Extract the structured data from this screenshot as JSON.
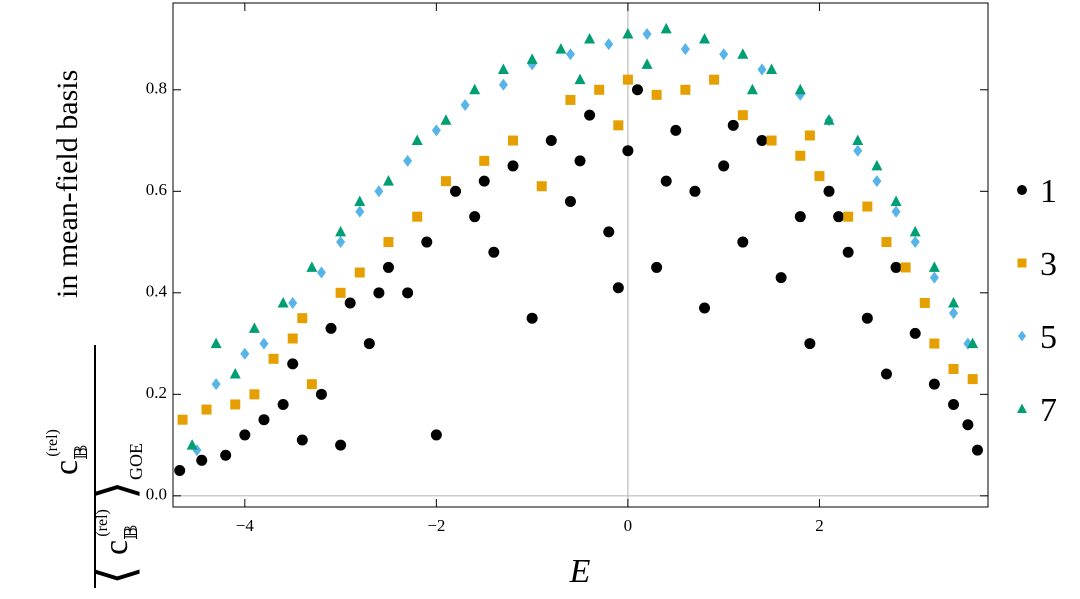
{
  "chart_data": {
    "type": "scatter",
    "xlabel": "E",
    "ylabel": {
      "symbol": "c",
      "sup": "(rel)",
      "sub": "𝔹",
      "average_sub": "GOE",
      "suffix": "in mean-field basis"
    },
    "xlim": [
      -4.75,
      3.76
    ],
    "ylim": [
      -0.022,
      0.971
    ],
    "xticks": [
      {
        "value": -4,
        "label": "−4"
      },
      {
        "value": -2,
        "label": "−2"
      },
      0,
      2
    ],
    "yticks": [
      {
        "value": 0,
        "label": "0.0"
      },
      0.2,
      0.4,
      0.6,
      0.8
    ],
    "zero_lines": {
      "x": 0,
      "y": 0
    },
    "legend": "right",
    "series": [
      {
        "name": "1",
        "color": "#000000",
        "marker": "circle",
        "x": [
          -4.68,
          -4.45,
          -4.2,
          -4.0,
          -3.8,
          -3.6,
          -3.4,
          -3.2,
          -3.0,
          -3.5,
          -3.1,
          -2.9,
          -2.7,
          -2.5,
          -2.3,
          -2.0,
          -2.1,
          -1.8,
          -1.6,
          -1.4,
          -1.2,
          -1.0,
          -0.8,
          -0.6,
          -0.4,
          -0.2,
          -0.1,
          0.0,
          0.1,
          0.3,
          0.5,
          0.7,
          0.8,
          1.0,
          1.2,
          1.4,
          1.6,
          1.8,
          1.9,
          2.1,
          2.3,
          2.5,
          2.7,
          2.8,
          3.0,
          3.2,
          3.4,
          3.55,
          3.65,
          -1.5,
          0.4,
          -0.5,
          1.1,
          2.2,
          -2.6
        ],
        "y": [
          0.05,
          0.07,
          0.08,
          0.12,
          0.15,
          0.18,
          0.11,
          0.2,
          0.1,
          0.26,
          0.33,
          0.38,
          0.3,
          0.45,
          0.4,
          0.12,
          0.5,
          0.6,
          0.55,
          0.48,
          0.65,
          0.35,
          0.7,
          0.58,
          0.75,
          0.52,
          0.41,
          0.68,
          0.8,
          0.45,
          0.72,
          0.6,
          0.37,
          0.65,
          0.5,
          0.7,
          0.43,
          0.55,
          0.3,
          0.6,
          0.48,
          0.35,
          0.24,
          0.45,
          0.32,
          0.22,
          0.18,
          0.14,
          0.09,
          0.62,
          0.62,
          0.66,
          0.73,
          0.55,
          0.4
        ]
      },
      {
        "name": "3",
        "color": "#e69f00",
        "marker": "square",
        "x": [
          -4.65,
          -4.4,
          -4.1,
          -3.9,
          -3.7,
          -3.5,
          -3.3,
          -3.4,
          -3.0,
          -2.8,
          -2.5,
          -2.2,
          -1.9,
          -1.5,
          -1.2,
          -0.9,
          -0.6,
          -0.3,
          0.0,
          0.3,
          0.6,
          0.9,
          1.2,
          1.5,
          1.8,
          2.0,
          2.3,
          2.5,
          2.7,
          2.9,
          3.1,
          3.2,
          3.4,
          3.6,
          1.9,
          -0.1
        ],
        "y": [
          0.15,
          0.17,
          0.18,
          0.2,
          0.27,
          0.31,
          0.22,
          0.35,
          0.4,
          0.44,
          0.5,
          0.55,
          0.62,
          0.66,
          0.7,
          0.61,
          0.78,
          0.8,
          0.82,
          0.79,
          0.8,
          0.82,
          0.75,
          0.7,
          0.67,
          0.63,
          0.55,
          0.57,
          0.5,
          0.45,
          0.38,
          0.3,
          0.25,
          0.23,
          0.71,
          0.73
        ]
      },
      {
        "name": "5",
        "color": "#56b4e9",
        "marker": "diamond",
        "x": [
          -4.5,
          -4.3,
          -4.0,
          -3.8,
          -3.5,
          -3.2,
          -3.0,
          -2.8,
          -2.6,
          -2.3,
          -2.0,
          -1.7,
          -1.3,
          -1.0,
          -0.6,
          -0.2,
          0.2,
          0.6,
          1.0,
          1.4,
          1.8,
          2.1,
          2.4,
          2.6,
          2.8,
          3.0,
          3.2,
          3.4,
          3.55
        ],
        "y": [
          0.09,
          0.22,
          0.28,
          0.3,
          0.38,
          0.44,
          0.5,
          0.56,
          0.6,
          0.66,
          0.72,
          0.77,
          0.81,
          0.85,
          0.87,
          0.89,
          0.91,
          0.88,
          0.87,
          0.84,
          0.79,
          0.74,
          0.68,
          0.62,
          0.56,
          0.5,
          0.43,
          0.36,
          0.3
        ]
      },
      {
        "name": "7",
        "color": "#009e73",
        "marker": "triangle",
        "x": [
          -4.55,
          -4.3,
          -4.1,
          -3.9,
          -3.6,
          -3.3,
          -3.0,
          -2.8,
          -2.5,
          -2.2,
          -1.9,
          -1.6,
          -1.3,
          -1.0,
          -0.7,
          -0.4,
          0.0,
          0.4,
          0.8,
          1.2,
          1.5,
          1.8,
          2.1,
          2.4,
          2.6,
          2.8,
          3.0,
          3.2,
          3.4,
          3.6,
          1.3,
          -0.5,
          0.2
        ],
        "y": [
          0.1,
          0.3,
          0.24,
          0.33,
          0.38,
          0.45,
          0.52,
          0.58,
          0.62,
          0.7,
          0.74,
          0.8,
          0.84,
          0.86,
          0.88,
          0.9,
          0.91,
          0.92,
          0.9,
          0.87,
          0.84,
          0.8,
          0.74,
          0.7,
          0.65,
          0.58,
          0.52,
          0.45,
          0.38,
          0.3,
          0.8,
          0.82,
          0.85
        ]
      }
    ]
  }
}
